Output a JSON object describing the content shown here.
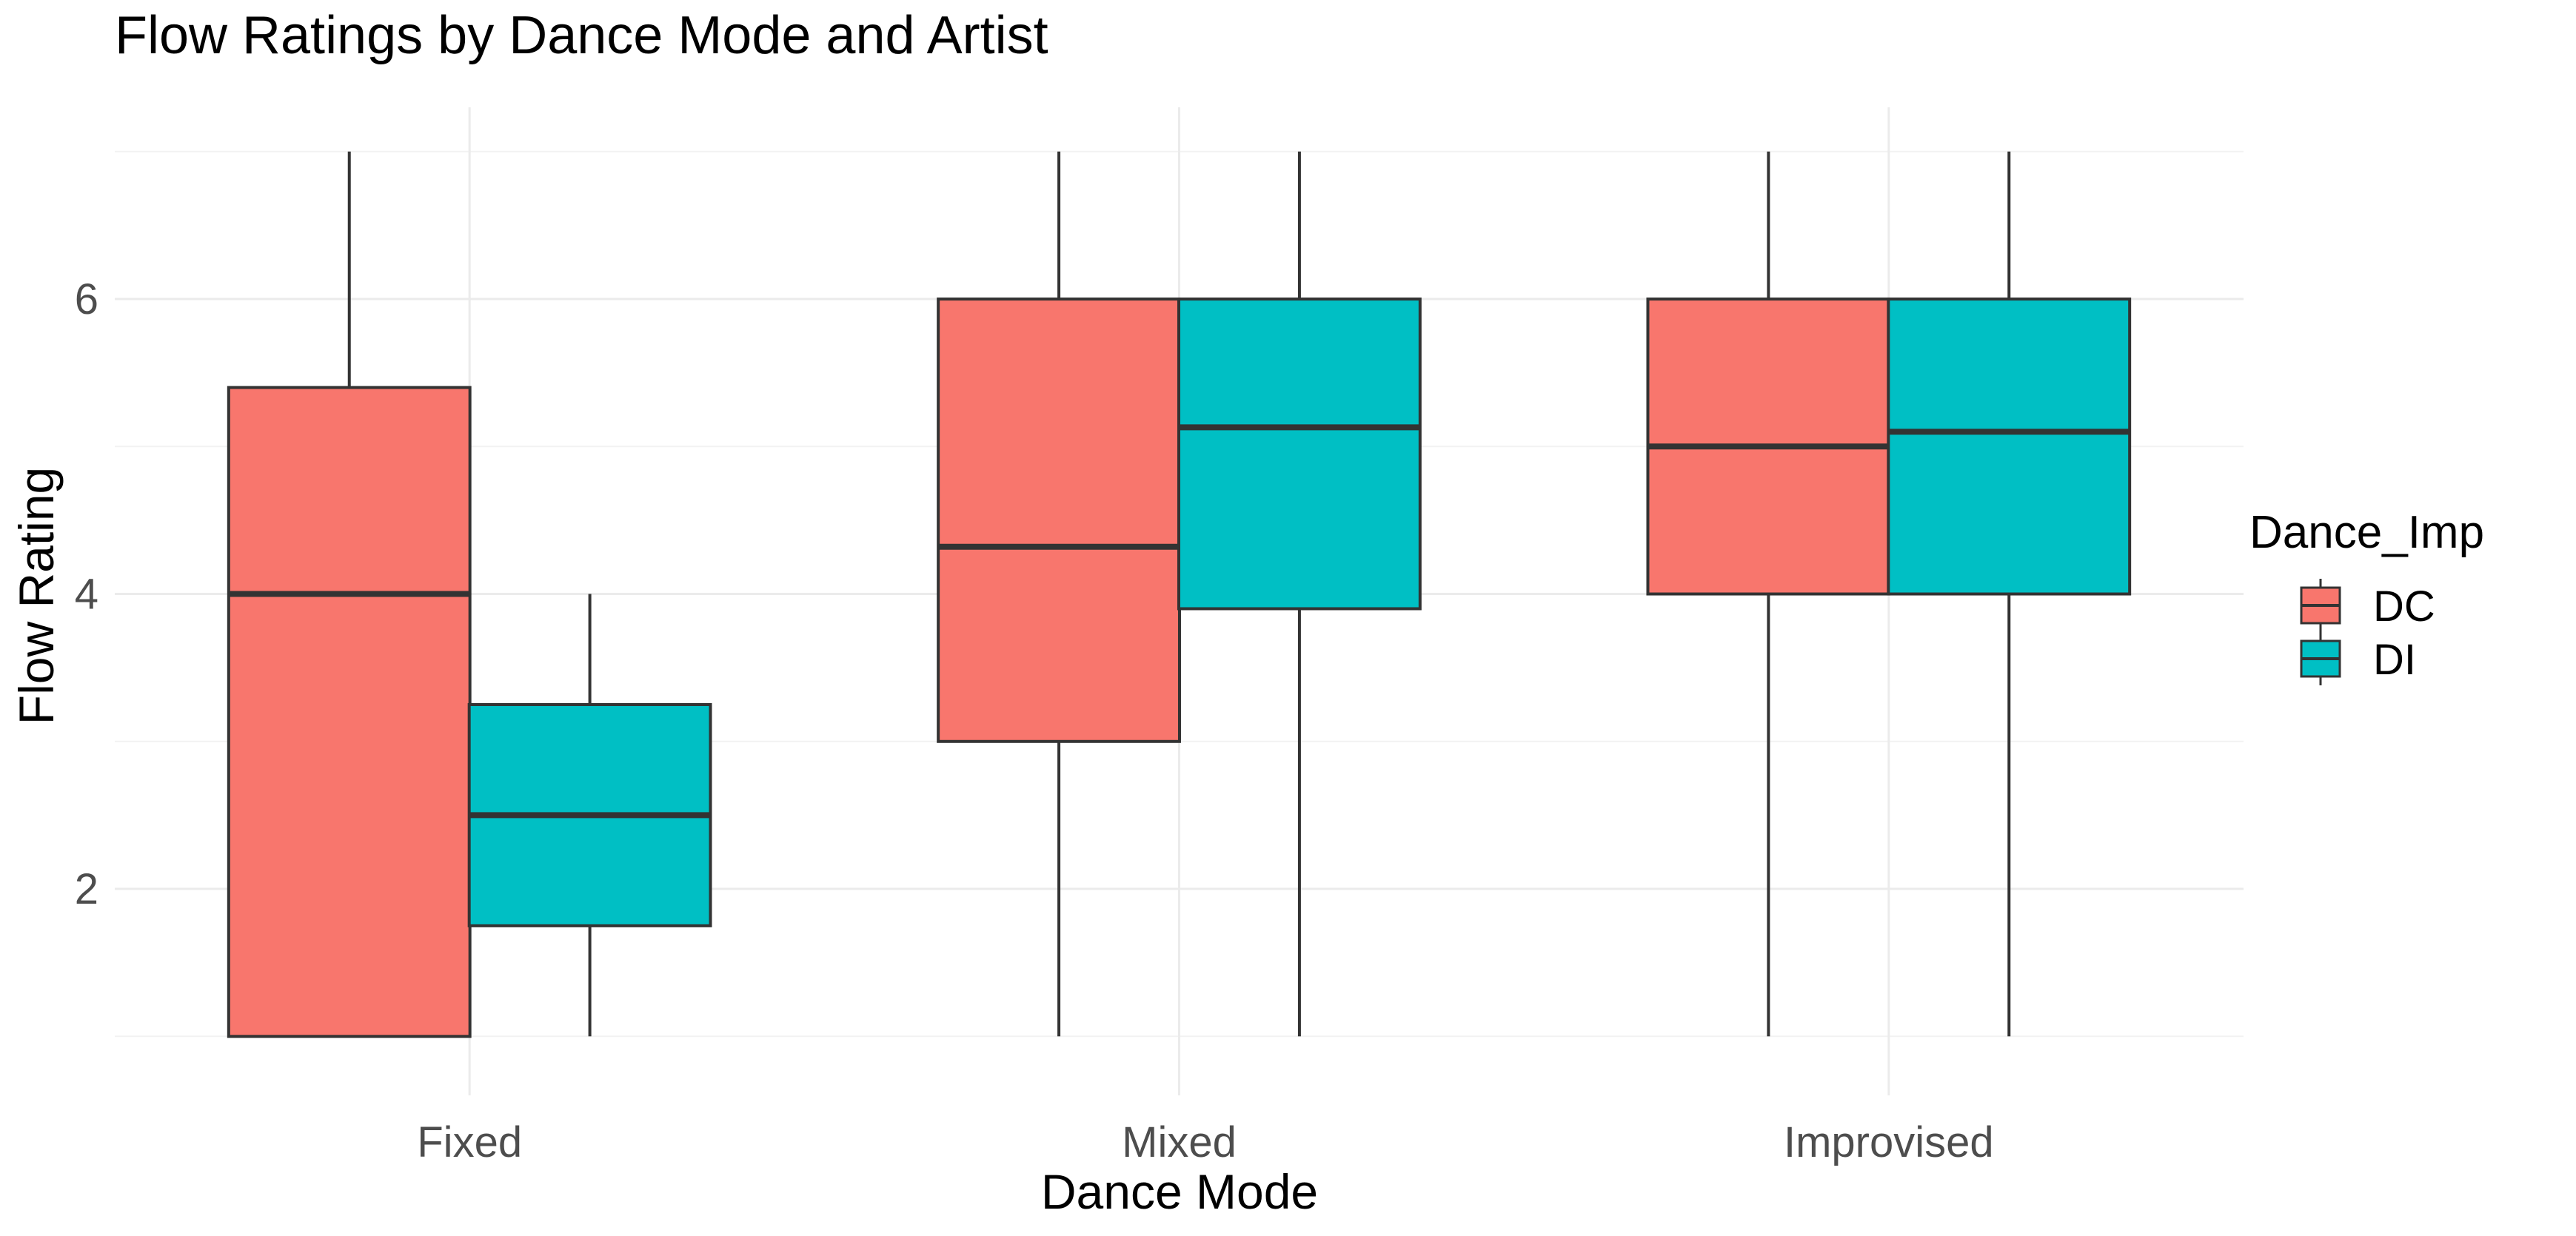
{
  "chart_data": {
    "type": "boxplot",
    "title": "Flow Ratings by Dance Mode and Artist",
    "xlabel": "Dance Mode",
    "ylabel": "Flow Rating",
    "categories": [
      "Fixed",
      "Mixed",
      "Improvised"
    ],
    "ylim": [
      0.6,
      7.3
    ],
    "yticks": [
      2,
      4,
      6
    ],
    "grid": true,
    "legend": {
      "title": "Dance_Imp",
      "position": "right"
    },
    "series": [
      {
        "name": "DC",
        "color": "#F8766D",
        "boxes": [
          {
            "category": "Fixed",
            "min": 1,
            "q1": 1,
            "median": 4,
            "q3": 5.4,
            "max": 7
          },
          {
            "category": "Mixed",
            "min": 1,
            "q1": 3,
            "median": 4.32,
            "q3": 6,
            "max": 7
          },
          {
            "category": "Improvised",
            "min": 1,
            "q1": 4,
            "median": 5,
            "q3": 6,
            "max": 7
          }
        ]
      },
      {
        "name": "DI",
        "color": "#00BFC4",
        "boxes": [
          {
            "category": "Fixed",
            "min": 1,
            "q1": 1.75,
            "median": 2.5,
            "q3": 3.25,
            "max": 4
          },
          {
            "category": "Mixed",
            "min": 1,
            "q1": 3.9,
            "median": 5.13,
            "q3": 6,
            "max": 7
          },
          {
            "category": "Improvised",
            "min": 1,
            "q1": 4,
            "median": 5.1,
            "q3": 6,
            "max": 7
          }
        ]
      }
    ]
  }
}
